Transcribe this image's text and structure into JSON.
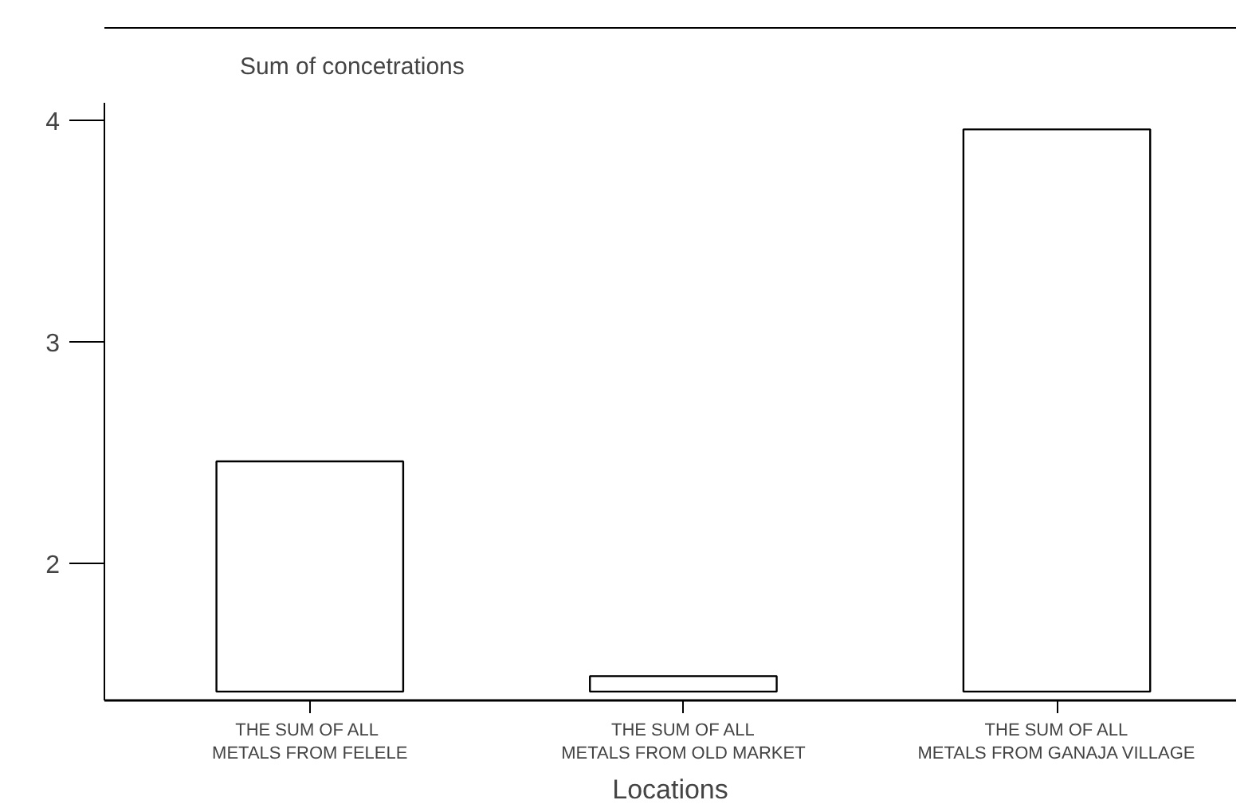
{
  "chart_data": {
    "type": "bar",
    "title": "Sum of concetrations",
    "xlabel": "Locations",
    "categories": [
      "THE SUM OF  ALL\nMETALS FROM FELELE",
      "THE SUM OF ALL\nMETALS FROM OLD MARKET",
      "THE SUM OF ALL\nMETALS FROM GANAJA VILLAGE"
    ],
    "values": [
      1.04,
      0.07,
      2.54
    ],
    "base": [
      1.42,
      1.42,
      1.42
    ],
    "color": "#ffffff",
    "ylim": [
      1.38,
      4.08
    ],
    "yticks": [
      2,
      3,
      4
    ],
    "grid": false
  }
}
